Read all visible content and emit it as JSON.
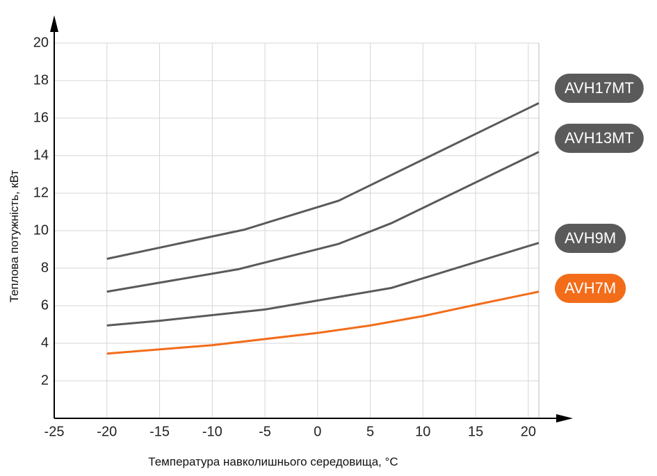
{
  "chart_data": {
    "type": "line",
    "x_label": "Температура навколишнього середовища, °C",
    "y_label": "Теплова потужність, кВт",
    "xlim": [
      -25,
      21
    ],
    "ylim": [
      0,
      20
    ],
    "xticks": [
      -25,
      -20,
      -15,
      -10,
      -5,
      0,
      5,
      10,
      15,
      20
    ],
    "yticks": [
      2,
      4,
      6,
      8,
      10,
      12,
      14,
      16,
      18,
      20
    ],
    "grid": true,
    "series": [
      {
        "name": "AVH17MT",
        "color": "#5a5a5a",
        "x": [
          -20,
          -7,
          2,
          21
        ],
        "values": [
          8.5,
          10.05,
          11.6,
          16.8
        ]
      },
      {
        "name": "AVH13MT",
        "color": "#5a5a5a",
        "x": [
          -20,
          -7.5,
          2,
          7,
          21
        ],
        "values": [
          6.75,
          7.95,
          9.3,
          10.4,
          14.2
        ]
      },
      {
        "name": "AVH9M",
        "color": "#5a5a5a",
        "x": [
          -20,
          -15,
          -5,
          7,
          21
        ],
        "values": [
          4.95,
          5.2,
          5.8,
          6.95,
          9.35
        ]
      },
      {
        "name": "AVH7M",
        "color": "#f26c1a",
        "x": [
          -20,
          -10,
          0,
          5,
          10,
          15,
          21
        ],
        "values": [
          3.45,
          3.9,
          4.55,
          4.95,
          5.45,
          6.05,
          6.75
        ]
      }
    ]
  }
}
